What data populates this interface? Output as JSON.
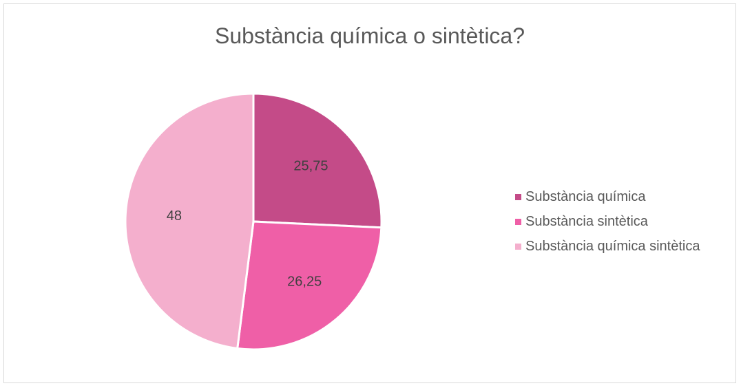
{
  "chart_data": {
    "type": "pie",
    "title": "Substància química o sintètica?",
    "categories": [
      "Substància química",
      "Substància sintètica",
      "Substància química sintètica"
    ],
    "values": [
      25.75,
      26.25,
      48
    ],
    "data_labels": [
      "25,75",
      "26,25",
      "48"
    ],
    "colors": [
      "#c44b88",
      "#ef5fa7",
      "#f4afcd"
    ],
    "legend_position": "right",
    "start_angle_deg": 0,
    "direction": "clockwise"
  }
}
